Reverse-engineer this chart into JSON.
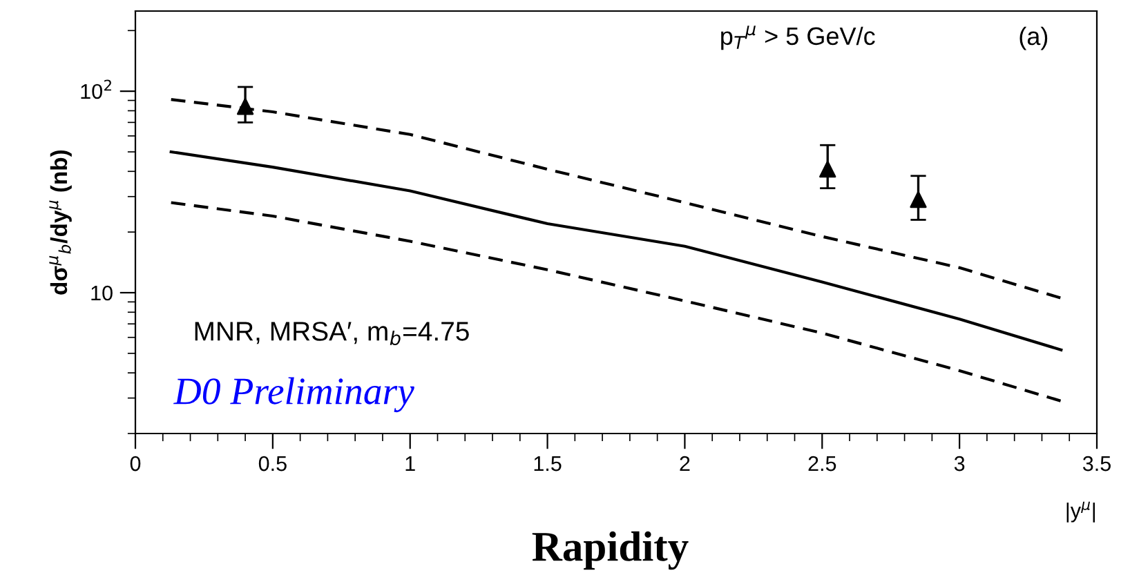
{
  "chart_data": {
    "type": "line",
    "ylabel": "dσ$^{μ}$$_{b}$/dy$^{μ}$ (nb)",
    "xlabel": "|y$^{μ}$|",
    "log": "y",
    "xlim": [
      0,
      3.5
    ],
    "xticks": [
      0,
      0.5,
      1,
      1.5,
      2,
      2.5,
      3,
      3.5
    ],
    "ylim": [
      2,
      250
    ],
    "yticks": [
      10,
      {
        "value": 100,
        "label": "10$^{2}$"
      }
    ],
    "grid": false,
    "legend": false,
    "series": [
      {
        "type": "scatter",
        "color": "#000000",
        "marker": "triangle",
        "x": [
          0.4,
          2.52,
          2.85
        ],
        "values": [
          84,
          41,
          29
        ],
        "errors": [
          [
            70,
            105
          ],
          [
            33,
            54
          ],
          [
            23,
            38
          ]
        ]
      },
      {
        "color": "#000000",
        "line_style": "solid",
        "marker": "none",
        "x": [
          0.13,
          0.5,
          1,
          1.5,
          2,
          2.5,
          3,
          3.37
        ],
        "values": [
          50,
          42,
          32,
          22,
          17,
          11.3,
          7.4,
          5.2
        ]
      },
      {
        "color": "#000000",
        "line_style": "dashed",
        "marker": "none",
        "x": [
          0.13,
          0.5,
          1,
          1.5,
          2,
          2.5,
          3,
          3.37
        ],
        "values": [
          91,
          79,
          61,
          41,
          28,
          19,
          13.3,
          9.4
        ]
      },
      {
        "color": "#000000",
        "line_style": "dashed",
        "marker": "none",
        "x": [
          0.13,
          0.5,
          1,
          1.5,
          2,
          2.5,
          3,
          3.37
        ],
        "values": [
          28,
          24,
          18,
          13,
          9.1,
          6.3,
          4.1,
          2.9
        ]
      }
    ],
    "annotations": [
      "p$_{T}$$^{μ}$ > 5 GeV/c",
      "(a)",
      "MNR, MRSA′, m$_{b}$=4.75",
      "D0 Preliminary",
      "Rapidity"
    ]
  }
}
